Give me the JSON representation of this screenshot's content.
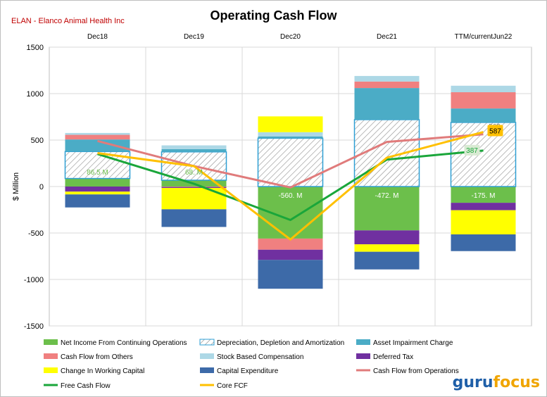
{
  "chart_data": {
    "type": "bar",
    "title": "Operating Cash Flow",
    "subtitle": "ELAN - Elanco Animal Health Inc",
    "ylabel": "$ Million",
    "ylim": [
      -1500,
      1500
    ],
    "yticks": [
      1500,
      1000,
      500,
      0,
      -500,
      -1000,
      -1500
    ],
    "categories": [
      "Dec18",
      "Dec19",
      "Dec20",
      "Dec21",
      "TTM/currentJun22"
    ],
    "stacked_series": [
      {
        "name": "Net Income From Continuing Operations",
        "color": "#6cbf4b",
        "values": [
          86.5,
          68,
          -560,
          -472,
          -175
        ],
        "labels": [
          "86.5 M",
          "68. M",
          "-560. M",
          "-472. M",
          "-175. M"
        ]
      },
      {
        "name": "Depreciation, Depletion and Amortization",
        "color": "#2e9fd4",
        "hatched": true,
        "values": [
          290,
          305,
          520,
          720,
          690
        ]
      },
      {
        "name": "Asset Impairment Charge",
        "color": "#4bacc6",
        "values": [
          130,
          30,
          20,
          340,
          150
        ]
      },
      {
        "name": "Cash Flow from Others",
        "color": "#f08080",
        "values": [
          50,
          -5,
          -120,
          70,
          175
        ]
      },
      {
        "name": "Stock Based Compensation",
        "color": "#add8e6",
        "values": [
          20,
          40,
          45,
          60,
          70
        ]
      },
      {
        "name": "Deferred Tax",
        "color": "#7030a0",
        "values": [
          -55,
          -10,
          -110,
          -150,
          -80
        ]
      },
      {
        "name": "Change In Working Capital",
        "color": "#ffff00",
        "values": [
          -30,
          -230,
          170,
          -80,
          -260
        ]
      },
      {
        "name": "Capital Expenditure",
        "color": "#3d6aa8",
        "values": [
          -140,
          -190,
          -310,
          -190,
          -180
        ]
      }
    ],
    "line_series": [
      {
        "name": "Cash Flow from Operations",
        "color": "#e07b7b",
        "values": [
          490,
          220,
          -10,
          480,
          562
        ],
        "end_label": "562"
      },
      {
        "name": "Free Cash Flow",
        "color": "#1aa63a",
        "values": [
          350,
          30,
          -360,
          290,
          387
        ],
        "end_label": "387"
      },
      {
        "name": "Core FCF",
        "color": "#ffc000",
        "values": [
          360,
          220,
          -570,
          310,
          587
        ],
        "end_label": "587"
      }
    ],
    "legend": [
      {
        "name": "Net Income From Continuing Operations",
        "kind": "box",
        "color": "#6cbf4b"
      },
      {
        "name": "Depreciation, Depletion and Amortization",
        "kind": "hatch",
        "color": "#2e9fd4"
      },
      {
        "name": "Asset Impairment Charge",
        "kind": "box",
        "color": "#4bacc6"
      },
      {
        "name": "Cash Flow from Others",
        "kind": "box",
        "color": "#f08080"
      },
      {
        "name": "Stock Based Compensation",
        "kind": "box",
        "color": "#add8e6"
      },
      {
        "name": "Deferred Tax",
        "kind": "box",
        "color": "#7030a0"
      },
      {
        "name": "Change In Working Capital",
        "kind": "box",
        "color": "#ffff00"
      },
      {
        "name": "Capital Expenditure",
        "kind": "box",
        "color": "#3d6aa8"
      },
      {
        "name": "Cash Flow from Operations",
        "kind": "line",
        "color": "#e07b7b"
      },
      {
        "name": "Free Cash Flow",
        "kind": "line",
        "color": "#1aa63a"
      },
      {
        "name": "Core FCF",
        "kind": "line",
        "color": "#ffc000"
      }
    ],
    "legend_placement": "bottom",
    "grid": true
  },
  "brand": {
    "part1": "guru",
    "part2": "focus",
    "color1": "#1f5fa8",
    "color2": "#f0a500"
  }
}
